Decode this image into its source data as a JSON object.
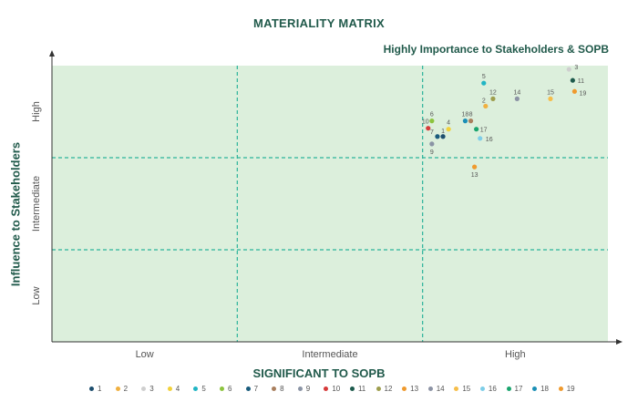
{
  "chart_data": {
    "type": "scatter",
    "title": "MATERIALITY MATRIX",
    "subtitle": "Highly Importance to Stakeholders & SOPB",
    "xlabel": "SIGNIFICANT TO SOPB",
    "ylabel": "Influence to Stakeholders",
    "x_categories": [
      "Low",
      "Intermediate",
      "High"
    ],
    "y_categories": [
      "Low",
      "Intermediate",
      "High"
    ],
    "xlim": [
      0,
      3
    ],
    "ylim": [
      0,
      3
    ],
    "grid": "dashed at category boundaries",
    "legend_position": "bottom",
    "colors": {
      "plot_bg": "#dcefdc",
      "grid": "#2bb39a",
      "axis": "#333333",
      "title": "#215a4b"
    },
    "series": [
      {
        "name": "1",
        "x": 2.11,
        "y": 2.23,
        "color": "#1d4e6e"
      },
      {
        "name": "2",
        "x": 2.34,
        "y": 2.56,
        "color": "#f0b040"
      },
      {
        "name": "3",
        "x": 2.79,
        "y": 2.96,
        "color": "#cfcfcf"
      },
      {
        "name": "4",
        "x": 2.14,
        "y": 2.31,
        "color": "#f2d13a"
      },
      {
        "name": "5",
        "x": 2.33,
        "y": 2.81,
        "color": "#21b5c4"
      },
      {
        "name": "6",
        "x": 2.05,
        "y": 2.4,
        "color": "#8cc43e"
      },
      {
        "name": "7",
        "x": 2.08,
        "y": 2.23,
        "color": "#1a5c7c"
      },
      {
        "name": "8",
        "x": 2.26,
        "y": 2.4,
        "color": "#a97f5e"
      },
      {
        "name": "9",
        "x": 2.05,
        "y": 2.15,
        "color": "#8a94a5"
      },
      {
        "name": "10",
        "x": 2.03,
        "y": 2.32,
        "color": "#d63a3a"
      },
      {
        "name": "11",
        "x": 2.81,
        "y": 2.84,
        "color": "#1d5a4c"
      },
      {
        "name": "12",
        "x": 2.38,
        "y": 2.64,
        "color": "#9e9e4e"
      },
      {
        "name": "13",
        "x": 2.28,
        "y": 1.9,
        "color": "#ef9a2e"
      },
      {
        "name": "14",
        "x": 2.51,
        "y": 2.64,
        "color": "#8c93a5"
      },
      {
        "name": "15",
        "x": 2.69,
        "y": 2.64,
        "color": "#f6be4a"
      },
      {
        "name": "16",
        "x": 2.31,
        "y": 2.21,
        "color": "#7ecee8"
      },
      {
        "name": "17",
        "x": 2.29,
        "y": 2.31,
        "color": "#1aa56e"
      },
      {
        "name": "18",
        "x": 2.23,
        "y": 2.4,
        "color": "#1b8fb6"
      },
      {
        "name": "19",
        "x": 2.82,
        "y": 2.72,
        "color": "#ef9a2e"
      }
    ]
  }
}
